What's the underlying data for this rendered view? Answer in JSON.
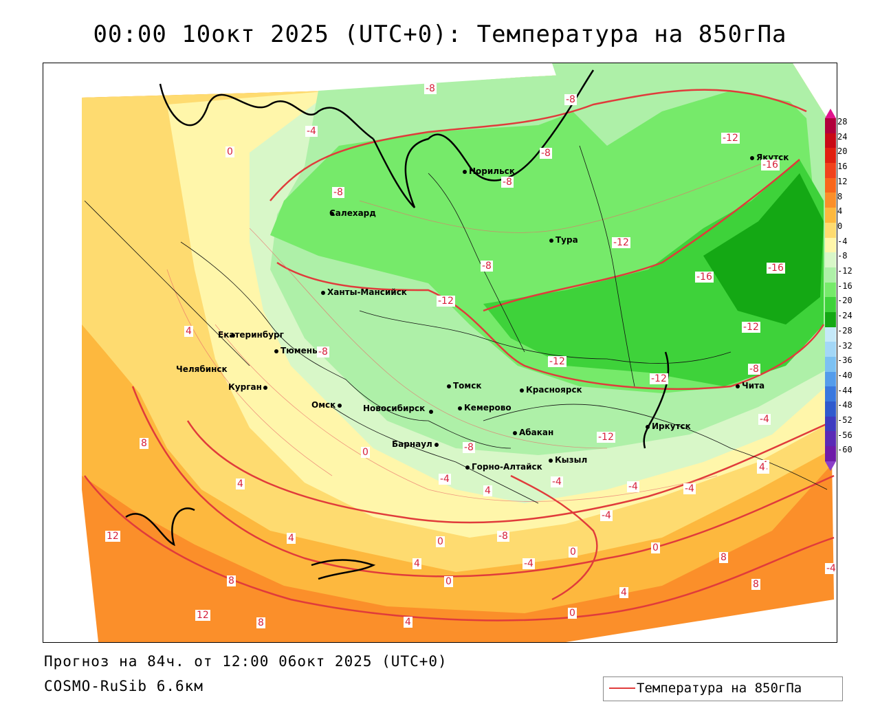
{
  "title": "00:00 10окт 2025 (UTC+0): Температура на 850гПа",
  "footer": {
    "forecast": "Прогноз на 84ч. от 12:00 06окт 2025 (UTC+0)",
    "model": "COSMO-RuSib 6.6км"
  },
  "legend": {
    "label": "Температура на 850гПа",
    "line_color": "#e03b3b"
  },
  "colorbar": {
    "ticks": [
      "28",
      "24",
      "20",
      "16",
      "12",
      "8",
      "4",
      "0",
      "-4",
      "-8",
      "-12",
      "-16",
      "-20",
      "-24",
      "-28",
      "-32",
      "-36",
      "-40",
      "-44",
      "-48",
      "-52",
      "-56",
      "-60"
    ],
    "colors": [
      "#b0003a",
      "#c80a16",
      "#e02010",
      "#f0421c",
      "#f8661c",
      "#fb8f2a",
      "#fdb83e",
      "#fedb70",
      "#fff6aa",
      "#d8f7c8",
      "#aef0a8",
      "#76ea6a",
      "#3ed23a",
      "#14a814",
      "#c5e9f9",
      "#a3d7f7",
      "#7cc1f2",
      "#549ceb",
      "#3a78de",
      "#2f5acd",
      "#3e3bc0",
      "#5a2ab5",
      "#6e1ba8"
    ]
  },
  "cities": [
    {
      "name": "Норильск"
    },
    {
      "name": "Якутск"
    },
    {
      "name": "Салехард"
    },
    {
      "name": "Тура"
    },
    {
      "name": "Ханты-Мансийск"
    },
    {
      "name": "Екатеринбург"
    },
    {
      "name": "Тюмень"
    },
    {
      "name": "Челябинск"
    },
    {
      "name": "Курган"
    },
    {
      "name": "Омск"
    },
    {
      "name": "Новосибирск"
    },
    {
      "name": "Томск"
    },
    {
      "name": "Кемерово"
    },
    {
      "name": "Красноярск"
    },
    {
      "name": "Барнаул"
    },
    {
      "name": "Абакан"
    },
    {
      "name": "Горно-Алтайск"
    },
    {
      "name": "Кызыл"
    },
    {
      "name": "Иркутск"
    },
    {
      "name": "Чита"
    }
  ],
  "contour_labels": [
    "-8",
    "-8",
    "-8",
    "-12",
    "-16",
    "-8",
    "0",
    "-4",
    "-8",
    "-12",
    "-8",
    "-12",
    "-16",
    "-16",
    "-12",
    "-4",
    "-12",
    "-12",
    "-8",
    "-4",
    "8",
    "4",
    "12",
    "4",
    "0",
    "-8",
    "-4",
    "-4",
    "-4",
    "-4",
    "4",
    "-4",
    "4",
    "-4",
    "-4",
    "-8",
    "0",
    "0",
    "4",
    "4",
    "0",
    "-4",
    "0",
    "8",
    "12",
    "8",
    "8",
    "4",
    "0",
    "4",
    "8",
    "-8",
    "-12"
  ]
}
